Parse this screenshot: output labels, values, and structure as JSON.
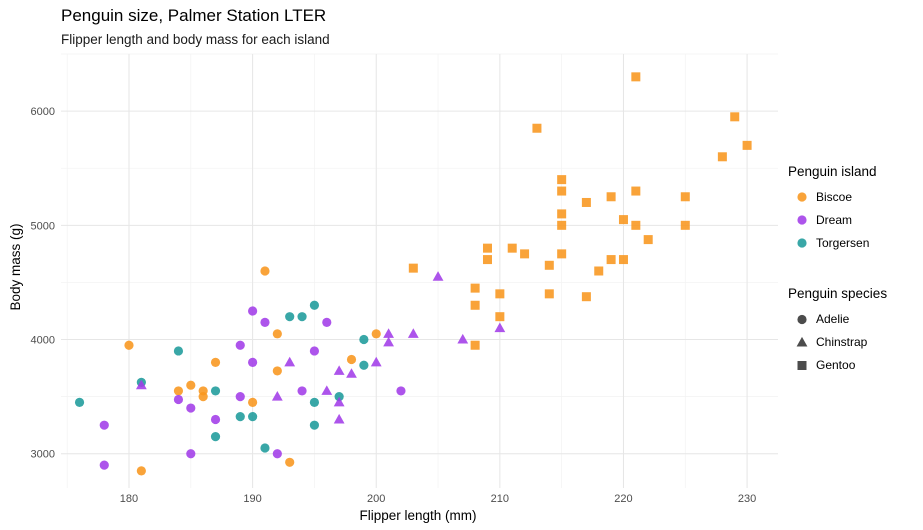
{
  "chart_data": {
    "type": "scatter",
    "title": "Penguin size, Palmer Station LTER",
    "subtitle": "Flipper length and body mass for each island",
    "xlabel": "Flipper length (mm)",
    "ylabel": "Body mass (g)",
    "xlim": [
      174.5,
      232.5
    ],
    "ylim": [
      2700,
      6500
    ],
    "xticks": [
      180,
      190,
      200,
      210,
      220,
      230
    ],
    "yticks": [
      3000,
      4000,
      5000,
      6000
    ],
    "grid": true,
    "legend_placement": "right",
    "color_legend": {
      "title": "Penguin island",
      "items": [
        {
          "label": "Biscoe",
          "color": "#F8961E"
        },
        {
          "label": "Dream",
          "color": "#A23CE8"
        },
        {
          "label": "Torgersen",
          "color": "#1E9B9B"
        }
      ]
    },
    "shape_legend": {
      "title": "Penguin species",
      "items": [
        {
          "label": "Adelie",
          "shape": "circle"
        },
        {
          "label": "Chinstrap",
          "shape": "triangle"
        },
        {
          "label": "Gentoo",
          "shape": "square"
        }
      ]
    },
    "series": [
      {
        "island": "Biscoe",
        "species": "Adelie",
        "color": "#F8961E",
        "shape": "circle",
        "points": [
          [
            180,
            3950
          ],
          [
            181,
            2850
          ],
          [
            184,
            3550
          ],
          [
            185,
            3600
          ],
          [
            186,
            3550
          ],
          [
            186,
            3500
          ],
          [
            187,
            3800
          ],
          [
            190,
            3450
          ],
          [
            191,
            4600
          ],
          [
            192,
            4050
          ],
          [
            192,
            3725
          ],
          [
            193,
            2925
          ],
          [
            198,
            3825
          ],
          [
            200,
            4050
          ]
        ]
      },
      {
        "island": "Dream",
        "species": "Adelie",
        "color": "#A23CE8",
        "shape": "circle",
        "points": [
          [
            178,
            3250
          ],
          [
            178,
            2900
          ],
          [
            184,
            3475
          ],
          [
            185,
            3400
          ],
          [
            185,
            3000
          ],
          [
            187,
            3300
          ],
          [
            189,
            3500
          ],
          [
            189,
            3950
          ],
          [
            190,
            3800
          ],
          [
            190,
            4250
          ],
          [
            191,
            4150
          ],
          [
            192,
            3000
          ],
          [
            194,
            3550
          ],
          [
            195,
            3900
          ],
          [
            196,
            4150
          ],
          [
            202,
            3550
          ]
        ]
      },
      {
        "island": "Torgersen",
        "species": "Adelie",
        "color": "#1E9B9B",
        "shape": "circle",
        "points": [
          [
            176,
            3450
          ],
          [
            181,
            3625
          ],
          [
            184,
            3900
          ],
          [
            187,
            3550
          ],
          [
            187,
            3150
          ],
          [
            189,
            3325
          ],
          [
            190,
            3325
          ],
          [
            191,
            3050
          ],
          [
            193,
            4200
          ],
          [
            194,
            4200
          ],
          [
            195,
            4300
          ],
          [
            195,
            3450
          ],
          [
            195,
            3250
          ],
          [
            197,
            3500
          ],
          [
            199,
            3775
          ],
          [
            199,
            4000
          ]
        ]
      },
      {
        "island": "Dream",
        "species": "Chinstrap",
        "color": "#A23CE8",
        "shape": "triangle",
        "points": [
          [
            181,
            3600
          ],
          [
            193,
            3800
          ],
          [
            192,
            3500
          ],
          [
            196,
            3550
          ],
          [
            197,
            3725
          ],
          [
            197,
            3450
          ],
          [
            197,
            3300
          ],
          [
            198,
            3700
          ],
          [
            200,
            3800
          ],
          [
            201,
            4050
          ],
          [
            201,
            3975
          ],
          [
            203,
            4050
          ],
          [
            205,
            4550
          ],
          [
            207,
            4000
          ],
          [
            210,
            4100
          ]
        ]
      },
      {
        "island": "Biscoe",
        "species": "Gentoo",
        "color": "#F8961E",
        "shape": "square",
        "points": [
          [
            203,
            4625
          ],
          [
            208,
            4450
          ],
          [
            208,
            4300
          ],
          [
            208,
            3950
          ],
          [
            209,
            4800
          ],
          [
            209,
            4700
          ],
          [
            210,
            4400
          ],
          [
            210,
            4200
          ],
          [
            211,
            4800
          ],
          [
            212,
            4750
          ],
          [
            213,
            5850
          ],
          [
            214,
            4650
          ],
          [
            214,
            4400
          ],
          [
            215,
            5400
          ],
          [
            215,
            5300
          ],
          [
            215,
            5100
          ],
          [
            215,
            5000
          ],
          [
            215,
            4750
          ],
          [
            217,
            5200
          ],
          [
            217,
            4375
          ],
          [
            218,
            4600
          ],
          [
            219,
            5250
          ],
          [
            219,
            4700
          ],
          [
            220,
            5050
          ],
          [
            220,
            4700
          ],
          [
            221,
            6300
          ],
          [
            221,
            5300
          ],
          [
            221,
            5000
          ],
          [
            222,
            4875
          ],
          [
            225,
            5250
          ],
          [
            225,
            5000
          ],
          [
            228,
            5600
          ],
          [
            229,
            5950
          ],
          [
            230,
            5700
          ]
        ]
      }
    ]
  }
}
